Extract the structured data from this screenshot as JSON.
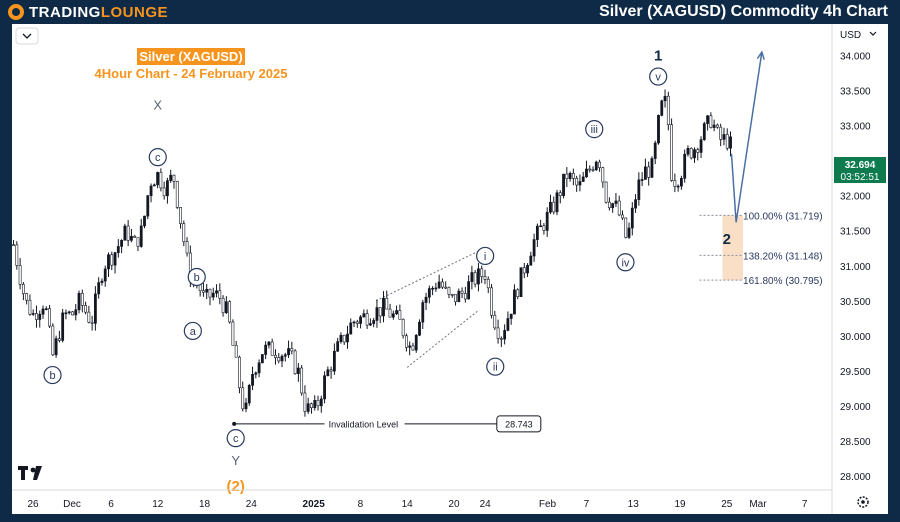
{
  "header": {
    "logo_text_1": "TRADING",
    "logo_text_2": "LOUNGE",
    "title": "Silver (XAGUSD) Commodity 4h Chart"
  },
  "chart_data": {
    "type": "candlestick",
    "title": "Silver (XAGUSD)",
    "subtitle": "4Hour Chart - 24 February 2025",
    "currency": "USD",
    "current_price": "32.694",
    "countdown": "03:52:51",
    "ylim": [
      27.8,
      34.45
    ],
    "y_ticks": [
      "34.000",
      "33.500",
      "33.000",
      "32.500",
      "32.000",
      "31.500",
      "31.000",
      "30.500",
      "30.000",
      "29.500",
      "29.000",
      "28.500",
      "28.000"
    ],
    "x_ticks": [
      {
        "label": "26",
        "day": 0
      },
      {
        "label": "Dec",
        "day": 5
      },
      {
        "label": "6",
        "day": 10
      },
      {
        "label": "12",
        "day": 16
      },
      {
        "label": "18",
        "day": 22
      },
      {
        "label": "24",
        "day": 28
      },
      {
        "label": "2025",
        "day": 36
      },
      {
        "label": "8",
        "day": 42
      },
      {
        "label": "14",
        "day": 48
      },
      {
        "label": "20",
        "day": 54
      },
      {
        "label": "24",
        "day": 58
      },
      {
        "label": "Feb",
        "day": 66
      },
      {
        "label": "7",
        "day": 71
      },
      {
        "label": "13",
        "day": 77
      },
      {
        "label": "19",
        "day": 83
      },
      {
        "label": "25",
        "day": 89
      },
      {
        "label": "Mar",
        "day": 93
      },
      {
        "label": "7",
        "day": 99
      }
    ],
    "price_path": [
      {
        "day": -2.5,
        "p": 31.3
      },
      {
        "day": -1,
        "p": 30.5
      },
      {
        "day": 0,
        "p": 30.3
      },
      {
        "day": 1.5,
        "p": 30.5
      },
      {
        "day": 2.5,
        "p": 29.7
      },
      {
        "day": 4,
        "p": 30.3
      },
      {
        "day": 5,
        "p": 30.3
      },
      {
        "day": 6,
        "p": 30.5
      },
      {
        "day": 7.5,
        "p": 30.2
      },
      {
        "day": 9,
        "p": 31
      },
      {
        "day": 10.5,
        "p": 31.2
      },
      {
        "day": 12,
        "p": 31.5
      },
      {
        "day": 13,
        "p": 31.3
      },
      {
        "day": 14,
        "p": 31.5
      },
      {
        "day": 15,
        "p": 32.2
      },
      {
        "day": 16,
        "p": 32.3
      },
      {
        "day": 17,
        "p": 32.1
      },
      {
        "day": 18,
        "p": 32.3
      },
      {
        "day": 19,
        "p": 31.6
      },
      {
        "day": 20,
        "p": 30.9
      },
      {
        "day": 21,
        "p": 30.8
      },
      {
        "day": 22,
        "p": 30.5
      },
      {
        "day": 23,
        "p": 30.6
      },
      {
        "day": 24,
        "p": 30.55
      },
      {
        "day": 25,
        "p": 30.3
      },
      {
        "day": 26.3,
        "p": 29.4
      },
      {
        "day": 27.2,
        "p": 28.85
      },
      {
        "day": 28.2,
        "p": 29.5
      },
      {
        "day": 29.5,
        "p": 29.8
      },
      {
        "day": 31,
        "p": 29.8
      },
      {
        "day": 33,
        "p": 29.7
      },
      {
        "day": 34,
        "p": 29.5
      },
      {
        "day": 35,
        "p": 28.95
      },
      {
        "day": 36.3,
        "p": 28.95
      },
      {
        "day": 37.5,
        "p": 29.4
      },
      {
        "day": 39,
        "p": 29.8
      },
      {
        "day": 41,
        "p": 30.2
      },
      {
        "day": 43,
        "p": 30.3
      },
      {
        "day": 45,
        "p": 30.4
      },
      {
        "day": 47,
        "p": 30.2
      },
      {
        "day": 48.5,
        "p": 29.8
      },
      {
        "day": 50,
        "p": 30.5
      },
      {
        "day": 52,
        "p": 30.8
      },
      {
        "day": 53.5,
        "p": 30.5
      },
      {
        "day": 55,
        "p": 30.6
      },
      {
        "day": 56.5,
        "p": 30.8
      },
      {
        "day": 58,
        "p": 30.9
      },
      {
        "day": 59,
        "p": 30.3
      },
      {
        "day": 60,
        "p": 30
      },
      {
        "day": 61,
        "p": 30.3
      },
      {
        "day": 62.5,
        "p": 30.8
      },
      {
        "day": 64,
        "p": 31.3
      },
      {
        "day": 65.5,
        "p": 31.6
      },
      {
        "day": 67,
        "p": 31.9
      },
      {
        "day": 68.5,
        "p": 32.3
      },
      {
        "day": 70,
        "p": 32.1
      },
      {
        "day": 71,
        "p": 32.3
      },
      {
        "day": 72.5,
        "p": 32.6
      },
      {
        "day": 73.5,
        "p": 32
      },
      {
        "day": 75,
        "p": 31.8
      },
      {
        "day": 76.2,
        "p": 31.35
      },
      {
        "day": 77.5,
        "p": 32.1
      },
      {
        "day": 78.5,
        "p": 32.35
      },
      {
        "day": 79.5,
        "p": 32.4
      },
      {
        "day": 80.5,
        "p": 33.25
      },
      {
        "day": 81.3,
        "p": 33.35
      },
      {
        "day": 82,
        "p": 32.2
      },
      {
        "day": 83,
        "p": 32.3
      },
      {
        "day": 84,
        "p": 32.6
      },
      {
        "day": 85,
        "p": 32.7
      },
      {
        "day": 86,
        "p": 32.9
      },
      {
        "day": 87,
        "p": 33.1
      },
      {
        "day": 88,
        "p": 32.8
      },
      {
        "day": 89,
        "p": 32.8
      },
      {
        "day": 89.6,
        "p": 32.7
      }
    ],
    "wave_labels": [
      {
        "text": "X",
        "day": 16,
        "p": 33.3,
        "circled": false,
        "color": "#5b6475"
      },
      {
        "text": "c",
        "day": 16,
        "p": 32.55,
        "circled": true
      },
      {
        "text": "b",
        "day": 2.5,
        "p": 29.44,
        "circled": true
      },
      {
        "text": "b",
        "day": 21,
        "p": 30.84,
        "circled": true
      },
      {
        "text": "a",
        "day": 20.5,
        "p": 30.07,
        "circled": true
      },
      {
        "text": "c",
        "day": 26,
        "p": 28.54,
        "circled": true
      },
      {
        "text": "Y",
        "day": 26,
        "p": 28.23,
        "circled": false,
        "color": "#5b6475"
      },
      {
        "text": "(2)",
        "day": 26,
        "p": 27.86,
        "circled": false,
        "color": "#f7941d"
      },
      {
        "text": "i",
        "day": 58,
        "p": 31.14,
        "circled": true
      },
      {
        "text": "ii",
        "day": 59.3,
        "p": 29.56,
        "circled": true
      },
      {
        "text": "iii",
        "day": 72,
        "p": 32.95,
        "circled": true
      },
      {
        "text": "iv",
        "day": 76,
        "p": 31.05,
        "circled": true
      },
      {
        "text": "v",
        "day": 80.2,
        "p": 33.7,
        "circled": true
      },
      {
        "text": "1",
        "day": 80.2,
        "p": 34.0,
        "circled": false,
        "color": "#0e2a47"
      },
      {
        "text": "2",
        "day": 89,
        "p": 31.38,
        "circled": false,
        "color": "#0e2a47"
      }
    ],
    "fib_levels": [
      {
        "pct": "100.00%",
        "price": "31.719",
        "p": 31.719
      },
      {
        "pct": "138.20%",
        "price": "31.148",
        "p": 31.148
      },
      {
        "pct": "161.80%",
        "price": "30.795",
        "p": 30.795
      }
    ],
    "invalidation": {
      "label": "Invalidation Level",
      "price": "28.743",
      "p": 28.743
    },
    "projection": [
      {
        "day": 89.6,
        "p": 32.6
      },
      {
        "day": 90.2,
        "p": 31.62
      },
      {
        "day": 93.5,
        "p": 34.05
      }
    ],
    "channel_upper": [
      {
        "day": 44,
        "p": 30.5
      },
      {
        "day": 57,
        "p": 31.2
      }
    ],
    "channel_lower": [
      {
        "day": 48,
        "p": 29.55
      },
      {
        "day": 57,
        "p": 30.35
      }
    ]
  }
}
